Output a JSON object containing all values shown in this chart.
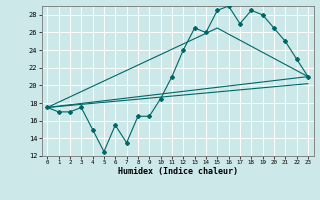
{
  "title": "",
  "xlabel": "Humidex (Indice chaleur)",
  "bg_color": "#cce8e8",
  "grid_color": "#ffffff",
  "line_color": "#006666",
  "xlim": [
    -0.5,
    23.5
  ],
  "ylim": [
    12,
    29
  ],
  "xticks": [
    0,
    1,
    2,
    3,
    4,
    5,
    6,
    7,
    8,
    9,
    10,
    11,
    12,
    13,
    14,
    15,
    16,
    17,
    18,
    19,
    20,
    21,
    22,
    23
  ],
  "yticks": [
    12,
    14,
    16,
    18,
    20,
    22,
    24,
    26,
    28
  ],
  "line1_x": [
    0,
    1,
    2,
    3,
    4,
    5,
    6,
    7,
    8,
    9,
    10,
    11,
    12,
    13,
    14,
    15,
    16,
    17,
    18,
    19,
    20,
    21,
    22,
    23
  ],
  "line1_y": [
    17.5,
    17.0,
    17.0,
    17.5,
    15.0,
    12.5,
    15.5,
    13.5,
    16.5,
    16.5,
    18.5,
    21.0,
    24.0,
    26.5,
    26.0,
    28.5,
    29.0,
    27.0,
    28.5,
    28.0,
    26.5,
    25.0,
    23.0,
    21.0
  ],
  "line2_x": [
    0,
    23
  ],
  "line2_y": [
    17.5,
    21.0
  ],
  "line3_x": [
    0,
    15,
    23
  ],
  "line3_y": [
    17.5,
    26.5,
    21.0
  ],
  "line4_x": [
    0,
    23
  ],
  "line4_y": [
    17.5,
    20.2
  ]
}
